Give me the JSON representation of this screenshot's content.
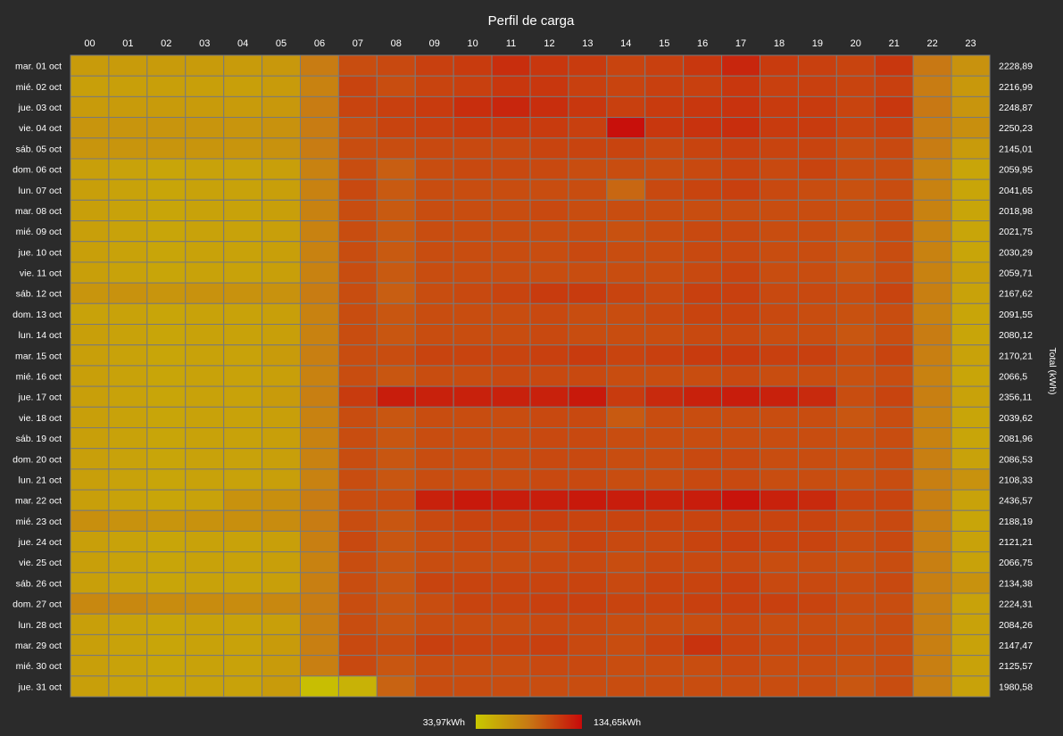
{
  "chart_data": {
    "type": "heatmap",
    "title": "Perfil de carga",
    "x_categories": [
      "00",
      "01",
      "02",
      "03",
      "04",
      "05",
      "06",
      "07",
      "08",
      "09",
      "10",
      "11",
      "12",
      "13",
      "14",
      "15",
      "16",
      "17",
      "18",
      "19",
      "20",
      "21",
      "22",
      "23"
    ],
    "y_categories": [
      "mar. 01 oct",
      "mié. 02 oct",
      "jue. 03 oct",
      "vie. 04 oct",
      "sáb. 05 oct",
      "dom. 06 oct",
      "lun. 07 oct",
      "mar. 08 oct",
      "mié. 09 oct",
      "jue. 10 oct",
      "vie. 11 oct",
      "sáb. 12 oct",
      "dom. 13 oct",
      "lun. 14 oct",
      "mar. 15 oct",
      "mié. 16 oct",
      "jue. 17 oct",
      "vie. 18 oct",
      "sáb. 19 oct",
      "dom. 20 oct",
      "lun. 21 oct",
      "mar. 22 oct",
      "mié. 23 oct",
      "jue. 24 oct",
      "vie. 25 oct",
      "sáb. 26 oct",
      "dom. 27 oct",
      "lun. 28 oct",
      "mar. 29 oct",
      "mié. 30 oct",
      "jue. 31 oct"
    ],
    "totals": [
      "2228,89",
      "2216,99",
      "2248,87",
      "2250,23",
      "2145,01",
      "2059,95",
      "2041,65",
      "2018,98",
      "2021,75",
      "2030,29",
      "2059,71",
      "2167,62",
      "2091,55",
      "2080,12",
      "2170,21",
      "2066,5",
      "2356,11",
      "2039,62",
      "2081,96",
      "2086,53",
      "2108,33",
      "2436,57",
      "2188,19",
      "2121,21",
      "2066,75",
      "2134,38",
      "2224,31",
      "2084,26",
      "2147,47",
      "2125,57",
      "1980,58"
    ],
    "right_axis_label": "Total (kWh)",
    "color_min": 33.97,
    "color_max": 134.65,
    "color_scale": [
      "#c8c800",
      "#c87814",
      "#c80a0a"
    ],
    "legend": {
      "min_label": "33,97kWh",
      "max_label": "134,65kWh",
      "position": "bottom-center"
    },
    "values": [
      [
        62,
        62,
        62,
        62,
        62,
        64,
        82,
        104,
        106,
        110,
        112,
        118,
        114,
        112,
        108,
        110,
        114,
        122,
        112,
        110,
        108,
        114,
        84,
        68
      ],
      [
        60,
        60,
        60,
        60,
        60,
        62,
        78,
        108,
        104,
        108,
        110,
        114,
        114,
        110,
        108,
        110,
        110,
        114,
        110,
        110,
        108,
        110,
        82,
        64
      ],
      [
        62,
        62,
        62,
        62,
        62,
        64,
        82,
        108,
        110,
        112,
        118,
        122,
        118,
        114,
        110,
        112,
        114,
        116,
        112,
        112,
        108,
        114,
        84,
        66
      ],
      [
        66,
        66,
        66,
        66,
        66,
        68,
        82,
        104,
        108,
        110,
        112,
        112,
        112,
        110,
        132,
        114,
        116,
        118,
        112,
        112,
        108,
        110,
        82,
        70
      ],
      [
        66,
        66,
        66,
        66,
        66,
        68,
        82,
        104,
        104,
        106,
        106,
        106,
        108,
        108,
        108,
        106,
        108,
        110,
        108,
        108,
        104,
        106,
        82,
        62
      ],
      [
        60,
        58,
        56,
        58,
        58,
        60,
        78,
        104,
        96,
        104,
        106,
        106,
        106,
        104,
        104,
        104,
        106,
        108,
        106,
        108,
        104,
        104,
        78,
        56
      ],
      [
        60,
        58,
        56,
        58,
        58,
        60,
        78,
        106,
        98,
        104,
        104,
        104,
        104,
        104,
        92,
        106,
        108,
        110,
        106,
        104,
        102,
        104,
        78,
        56
      ],
      [
        60,
        58,
        56,
        58,
        58,
        60,
        78,
        104,
        98,
        104,
        104,
        104,
        106,
        104,
        104,
        104,
        104,
        104,
        104,
        104,
        102,
        104,
        78,
        56
      ],
      [
        60,
        58,
        56,
        58,
        58,
        60,
        78,
        104,
        98,
        104,
        104,
        104,
        104,
        104,
        102,
        104,
        106,
        106,
        104,
        104,
        100,
        104,
        78,
        56
      ],
      [
        60,
        58,
        56,
        58,
        58,
        60,
        78,
        104,
        98,
        104,
        104,
        104,
        104,
        106,
        104,
        104,
        106,
        106,
        104,
        104,
        100,
        104,
        78,
        56
      ],
      [
        60,
        58,
        56,
        58,
        58,
        60,
        78,
        104,
        98,
        104,
        104,
        104,
        104,
        104,
        104,
        104,
        106,
        108,
        104,
        104,
        100,
        104,
        78,
        60
      ],
      [
        66,
        68,
        66,
        68,
        68,
        68,
        82,
        104,
        96,
        104,
        106,
        108,
        112,
        112,
        108,
        106,
        110,
        110,
        106,
        106,
        104,
        108,
        80,
        58
      ],
      [
        58,
        58,
        56,
        58,
        58,
        60,
        78,
        104,
        100,
        104,
        104,
        104,
        106,
        104,
        104,
        106,
        108,
        108,
        106,
        104,
        102,
        104,
        78,
        56
      ],
      [
        60,
        58,
        56,
        58,
        58,
        60,
        78,
        104,
        100,
        104,
        104,
        104,
        106,
        104,
        104,
        104,
        106,
        106,
        104,
        104,
        100,
        104,
        82,
        56
      ],
      [
        60,
        58,
        56,
        58,
        58,
        62,
        80,
        104,
        104,
        108,
        108,
        108,
        110,
        112,
        108,
        110,
        112,
        112,
        110,
        110,
        104,
        108,
        80,
        58
      ],
      [
        60,
        58,
        56,
        58,
        58,
        60,
        78,
        104,
        100,
        104,
        104,
        106,
        106,
        106,
        104,
        104,
        104,
        106,
        104,
        104,
        102,
        104,
        78,
        56
      ],
      [
        60,
        58,
        56,
        58,
        58,
        62,
        80,
        112,
        126,
        124,
        124,
        124,
        124,
        128,
        112,
        120,
        124,
        126,
        124,
        120,
        104,
        108,
        80,
        58
      ],
      [
        60,
        58,
        56,
        58,
        58,
        60,
        78,
        104,
        100,
        104,
        104,
        104,
        106,
        106,
        98,
        104,
        104,
        104,
        104,
        104,
        100,
        104,
        78,
        56
      ],
      [
        60,
        58,
        56,
        58,
        58,
        60,
        78,
        104,
        100,
        104,
        104,
        104,
        106,
        106,
        104,
        104,
        104,
        104,
        104,
        104,
        102,
        104,
        78,
        56
      ],
      [
        60,
        58,
        56,
        58,
        58,
        60,
        78,
        104,
        100,
        104,
        104,
        104,
        106,
        106,
        104,
        104,
        106,
        106,
        104,
        104,
        102,
        104,
        80,
        58
      ],
      [
        60,
        58,
        56,
        58,
        58,
        60,
        78,
        104,
        100,
        104,
        104,
        104,
        106,
        106,
        104,
        104,
        106,
        106,
        104,
        104,
        102,
        104,
        80,
        68
      ],
      [
        60,
        58,
        56,
        58,
        68,
        70,
        82,
        104,
        104,
        124,
        128,
        126,
        126,
        128,
        126,
        124,
        126,
        130,
        124,
        120,
        108,
        108,
        80,
        58
      ],
      [
        70,
        68,
        66,
        68,
        70,
        72,
        82,
        104,
        100,
        106,
        108,
        108,
        110,
        108,
        108,
        108,
        108,
        108,
        108,
        108,
        104,
        106,
        80,
        56
      ],
      [
        60,
        58,
        56,
        58,
        58,
        60,
        80,
        106,
        100,
        104,
        106,
        106,
        104,
        108,
        106,
        106,
        108,
        110,
        108,
        108,
        104,
        106,
        80,
        58
      ],
      [
        60,
        58,
        56,
        58,
        58,
        60,
        78,
        104,
        100,
        104,
        104,
        104,
        106,
        106,
        104,
        106,
        106,
        106,
        104,
        104,
        102,
        104,
        80,
        58
      ],
      [
        60,
        58,
        56,
        58,
        58,
        60,
        80,
        104,
        100,
        108,
        108,
        108,
        108,
        108,
        106,
        108,
        108,
        110,
        106,
        106,
        104,
        106,
        80,
        68
      ],
      [
        74,
        74,
        72,
        72,
        72,
        74,
        82,
        104,
        100,
        104,
        108,
        108,
        110,
        110,
        108,
        108,
        110,
        110,
        110,
        108,
        104,
        104,
        80,
        58
      ],
      [
        60,
        58,
        56,
        58,
        58,
        60,
        80,
        104,
        100,
        104,
        104,
        104,
        106,
        106,
        104,
        104,
        104,
        106,
        104,
        104,
        102,
        104,
        80,
        58
      ],
      [
        60,
        58,
        56,
        58,
        58,
        62,
        80,
        106,
        104,
        110,
        108,
        108,
        110,
        106,
        104,
        108,
        116,
        108,
        106,
        106,
        104,
        104,
        80,
        58
      ],
      [
        60,
        58,
        56,
        58,
        58,
        62,
        80,
        106,
        100,
        104,
        104,
        104,
        106,
        106,
        104,
        104,
        104,
        106,
        104,
        104,
        102,
        104,
        80,
        58
      ],
      [
        60,
        58,
        56,
        58,
        58,
        62,
        40,
        48,
        94,
        104,
        104,
        104,
        104,
        104,
        104,
        104,
        104,
        104,
        104,
        104,
        100,
        104,
        80,
        58
      ]
    ]
  }
}
